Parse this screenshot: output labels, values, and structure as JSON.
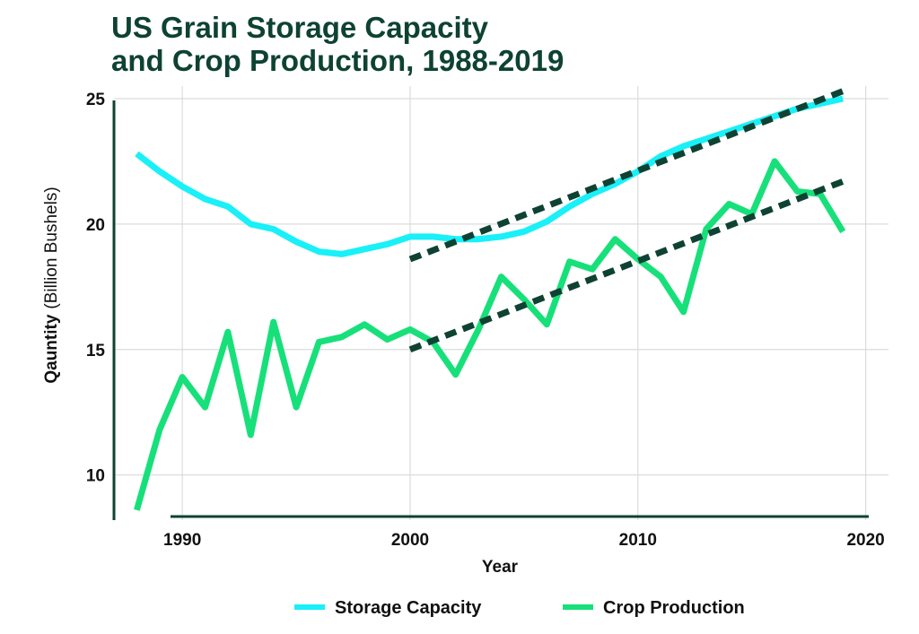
{
  "chart_data": {
    "type": "line",
    "title": [
      "US Grain Storage Capacity",
      "and Crop Production, 1988-2019"
    ],
    "xlabel": "Year",
    "ylabel": "Qauntity",
    "ylabel_unit": "(Billion Bushels)",
    "xlim": [
      1987,
      2021
    ],
    "ylim": [
      8.2,
      25.5
    ],
    "xticks": [
      1990,
      2000,
      2010,
      2020
    ],
    "yticks": [
      10,
      15,
      20,
      25
    ],
    "grid": true,
    "legend_position": "bottom",
    "series": [
      {
        "name": "Storage Capacity",
        "color": "#19f0f8",
        "x": [
          1988,
          1989,
          1990,
          1991,
          1992,
          1993,
          1994,
          1995,
          1996,
          1997,
          1998,
          1999,
          2000,
          2001,
          2002,
          2003,
          2004,
          2005,
          2006,
          2007,
          2008,
          2009,
          2010,
          2011,
          2012,
          2013,
          2014,
          2015,
          2016,
          2017,
          2018,
          2019
        ],
        "values": [
          22.8,
          22.1,
          21.5,
          21.0,
          20.7,
          20.0,
          19.8,
          19.3,
          18.9,
          18.8,
          19.0,
          19.2,
          19.5,
          19.5,
          19.4,
          19.4,
          19.5,
          19.7,
          20.1,
          20.7,
          21.2,
          21.6,
          22.1,
          22.7,
          23.1,
          23.4,
          23.7,
          24.0,
          24.3,
          24.6,
          24.8,
          25.0
        ]
      },
      {
        "name": "Crop Production",
        "color": "#17e07a",
        "x": [
          1988,
          1989,
          1990,
          1991,
          1992,
          1993,
          1994,
          1995,
          1996,
          1997,
          1998,
          1999,
          2000,
          2001,
          2002,
          2003,
          2004,
          2005,
          2006,
          2007,
          2008,
          2009,
          2010,
          2011,
          2012,
          2013,
          2014,
          2015,
          2016,
          2017,
          2018,
          2019
        ],
        "values": [
          8.6,
          11.8,
          13.9,
          12.7,
          15.7,
          11.6,
          16.1,
          12.7,
          15.3,
          15.5,
          16.0,
          15.4,
          15.8,
          15.3,
          14.0,
          15.8,
          17.9,
          17.0,
          16.0,
          18.5,
          18.2,
          19.4,
          18.6,
          17.9,
          16.5,
          19.8,
          20.8,
          20.4,
          22.5,
          21.3,
          21.2,
          19.7
        ]
      }
    ],
    "trendlines": [
      {
        "series": "Storage Capacity",
        "color": "#0e4233",
        "x": [
          2000,
          2019
        ],
        "values": [
          18.6,
          25.3
        ]
      },
      {
        "series": "Crop Production",
        "color": "#0e4233",
        "x": [
          2000,
          2019
        ],
        "values": [
          15.0,
          21.7
        ]
      }
    ]
  }
}
